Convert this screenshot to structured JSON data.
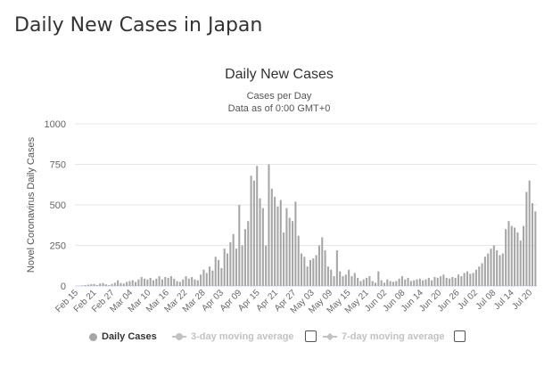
{
  "page": {
    "heading": "Daily New Cases in Japan"
  },
  "colors": {
    "bar": "#a6a6a6",
    "grid": "#e6e6e6",
    "text": "#333333",
    "axis_text": "#666666",
    "legend_inactive": "#c2c2c2"
  },
  "legend": {
    "daily_cases": "Daily Cases",
    "ma3": "3-day moving average",
    "ma7": "7-day moving average"
  },
  "chart_data": {
    "type": "bar",
    "title": "Daily New Cases",
    "subtitle_line1": "Cases per Day",
    "subtitle_line2": "Data as of 0:00 GMT+0",
    "ylabel": "Novel Coronavirus Daily Cases",
    "xlabel": "",
    "ylim": [
      0,
      1000
    ],
    "yticks": [
      0,
      250,
      500,
      750,
      1000
    ],
    "xtick_labels": [
      "Feb 15",
      "Feb 21",
      "Feb 27",
      "Mar 04",
      "Mar 10",
      "Mar 16",
      "Mar 22",
      "Mar 28",
      "Apr 03",
      "Apr 09",
      "Apr 15",
      "Apr 21",
      "Apr 27",
      "May 03",
      "May 09",
      "May 15",
      "May 21",
      "Jun 02",
      "Jun 08",
      "Jun 14",
      "Jun 20",
      "Jun 26",
      "Jul 02",
      "Jul 08",
      "Jul 14",
      "Jul 20"
    ],
    "series": [
      {
        "name": "Daily Cases",
        "start_date": "Feb 15",
        "values": [
          0,
          1,
          3,
          5,
          8,
          10,
          12,
          6,
          15,
          18,
          10,
          5,
          12,
          20,
          35,
          18,
          15,
          25,
          30,
          35,
          25,
          40,
          55,
          45,
          40,
          50,
          35,
          45,
          60,
          40,
          55,
          50,
          60,
          45,
          30,
          25,
          40,
          60,
          45,
          55,
          40,
          35,
          70,
          100,
          80,
          120,
          95,
          180,
          160,
          110,
          230,
          200,
          270,
          320,
          230,
          500,
          250,
          350,
          400,
          680,
          650,
          740,
          540,
          480,
          250,
          750,
          600,
          550,
          490,
          530,
          330,
          480,
          420,
          400,
          520,
          310,
          200,
          180,
          120,
          160,
          170,
          190,
          250,
          300,
          220,
          120,
          100,
          60,
          220,
          90,
          60,
          70,
          100,
          60,
          80,
          50,
          30,
          40,
          50,
          60,
          30,
          20,
          90,
          35,
          20,
          40,
          30,
          25,
          30,
          45,
          60,
          40,
          50,
          30,
          35,
          40,
          45,
          35,
          40,
          50,
          35,
          55,
          50,
          60,
          70,
          50,
          45,
          55,
          50,
          70,
          60,
          80,
          90,
          75,
          80,
          100,
          120,
          140,
          180,
          200,
          230,
          250,
          220,
          190,
          200,
          350,
          400,
          370,
          360,
          330,
          280,
          370,
          580,
          650,
          510,
          460
        ]
      }
    ]
  }
}
